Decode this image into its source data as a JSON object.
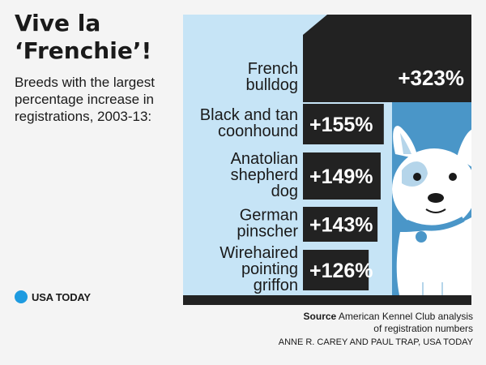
{
  "header": {
    "title": "Vive la\n‘Frenchie’!",
    "subtitle": "Breeds with the largest percentage increase in registrations, 2003-13:"
  },
  "chart_data": {
    "type": "bar",
    "orientation": "horizontal",
    "categories": [
      "French bulldog",
      "Black and tan coonhound",
      "Anatolian shepherd dog",
      "German pinscher",
      "Wirehaired pointing griffon"
    ],
    "category_lines": [
      [
        "French",
        "bulldog"
      ],
      [
        "Black and tan",
        "coonhound"
      ],
      [
        "Anatolian",
        "shepherd",
        "dog"
      ],
      [
        "German",
        "pinscher"
      ],
      [
        "Wirehaired",
        "pointing",
        "griffon"
      ]
    ],
    "values": [
      323,
      155,
      149,
      143,
      126
    ],
    "value_labels": [
      "+323%",
      "+155%",
      "+149%",
      "+143%",
      "+126%"
    ],
    "unit": "%",
    "xlim": [
      0,
      323
    ],
    "grid": false,
    "legend": "none"
  },
  "colors": {
    "background": "#f4f4f4",
    "panel_light": "#c6e4f6",
    "panel_blue": "#4a96c8",
    "bar": "#222222",
    "bar_text": "#ffffff",
    "dog_white": "#ffffff",
    "dog_spots": "#b5d5ea",
    "logo_dot": "#1e9be0"
  },
  "footer": {
    "source_label": "Source",
    "source_text": "American Kennel Club analysis",
    "source_text_2": "of registration numbers",
    "credit": "ANNE R. CAREY AND PAUL TRAP, USA TODAY"
  },
  "brand": {
    "logo_text": "USA TODAY",
    "logo_icon": "usa-today-dot-icon"
  },
  "illustration": {
    "name": "french-bulldog-icon"
  }
}
